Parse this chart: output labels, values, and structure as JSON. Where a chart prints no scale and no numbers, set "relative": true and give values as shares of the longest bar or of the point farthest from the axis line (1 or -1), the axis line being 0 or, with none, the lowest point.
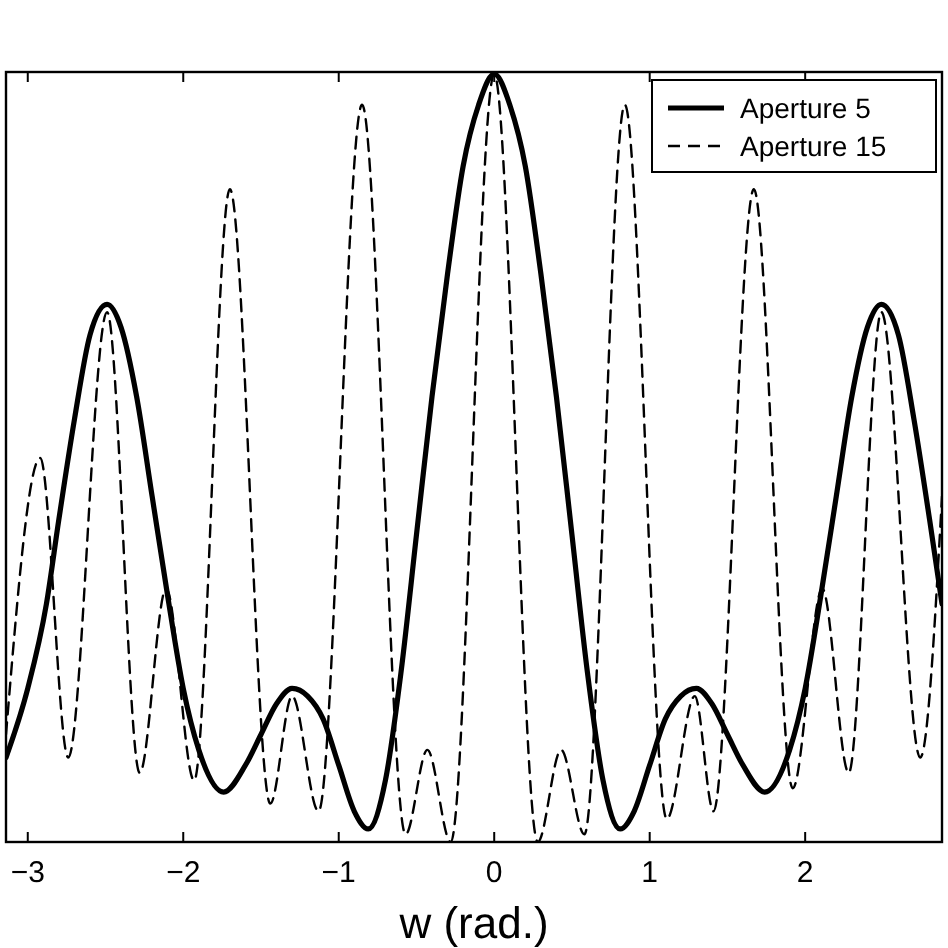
{
  "chart_data": {
    "type": "line",
    "xlabel": "w (rad.)",
    "relative": true,
    "xlim": [
      -3.14,
      2.88
    ],
    "xticks": [
      -3,
      -2,
      -1,
      0,
      1,
      2
    ],
    "grid": false,
    "legend": "top right",
    "series": [
      {
        "name": "Aperture 5",
        "color": "#000000",
        "line_style": "solid",
        "x": [
          -3.14,
          -3.0,
          -2.88,
          -2.8,
          -2.7,
          -2.6,
          -2.49,
          -2.4,
          -2.3,
          -2.2,
          -2.1,
          -2.0,
          -1.9,
          -1.74,
          -1.6,
          -1.5,
          -1.4,
          -1.3,
          -1.2,
          -1.1,
          -1.0,
          -0.9,
          -0.81,
          -0.7,
          -0.6,
          -0.5,
          -0.4,
          -0.3,
          -0.2,
          -0.1,
          0,
          0.1,
          0.2,
          0.3,
          0.4,
          0.5,
          0.6,
          0.7,
          0.81,
          0.9,
          1.0,
          1.1,
          1.2,
          1.3,
          1.4,
          1.5,
          1.6,
          1.74,
          1.9,
          2.0,
          2.1,
          2.2,
          2.3,
          2.4,
          2.49,
          2.6,
          2.7,
          2.8,
          2.88
        ],
        "values": [
          0.11,
          0.2,
          0.31,
          0.42,
          0.55,
          0.66,
          0.7,
          0.67,
          0.58,
          0.45,
          0.32,
          0.2,
          0.12,
          0.065,
          0.1,
          0.14,
          0.18,
          0.2,
          0.19,
          0.16,
          0.1,
          0.04,
          0.017,
          0.08,
          0.22,
          0.4,
          0.58,
          0.74,
          0.88,
          0.96,
          1.0,
          0.96,
          0.88,
          0.74,
          0.58,
          0.4,
          0.22,
          0.08,
          0.017,
          0.04,
          0.1,
          0.16,
          0.19,
          0.2,
          0.18,
          0.14,
          0.1,
          0.065,
          0.12,
          0.2,
          0.32,
          0.45,
          0.58,
          0.67,
          0.7,
          0.66,
          0.55,
          0.42,
          0.31
        ]
      },
      {
        "name": "Aperture 15",
        "color": "#000000",
        "line_style": "dashed",
        "x": [
          -3.14,
          -2.92,
          -2.74,
          -2.49,
          -2.28,
          -2.11,
          -1.93,
          -1.7,
          -1.44,
          -1.3,
          -1.13,
          -0.85,
          -0.57,
          -0.43,
          -0.28,
          0,
          0.28,
          0.43,
          0.58,
          0.84,
          1.11,
          1.29,
          1.41,
          1.67,
          1.92,
          2.11,
          2.28,
          2.49,
          2.74,
          2.88
        ],
        "values": [
          0.14,
          0.5,
          0.11,
          0.69,
          0.09,
          0.33,
          0.08,
          0.85,
          0.05,
          0.19,
          0.04,
          0.96,
          0.01,
          0.12,
          0.0,
          1.0,
          0.0,
          0.12,
          0.01,
          0.96,
          0.03,
          0.19,
          0.04,
          0.85,
          0.07,
          0.33,
          0.09,
          0.69,
          0.11,
          0.45
        ]
      }
    ]
  }
}
